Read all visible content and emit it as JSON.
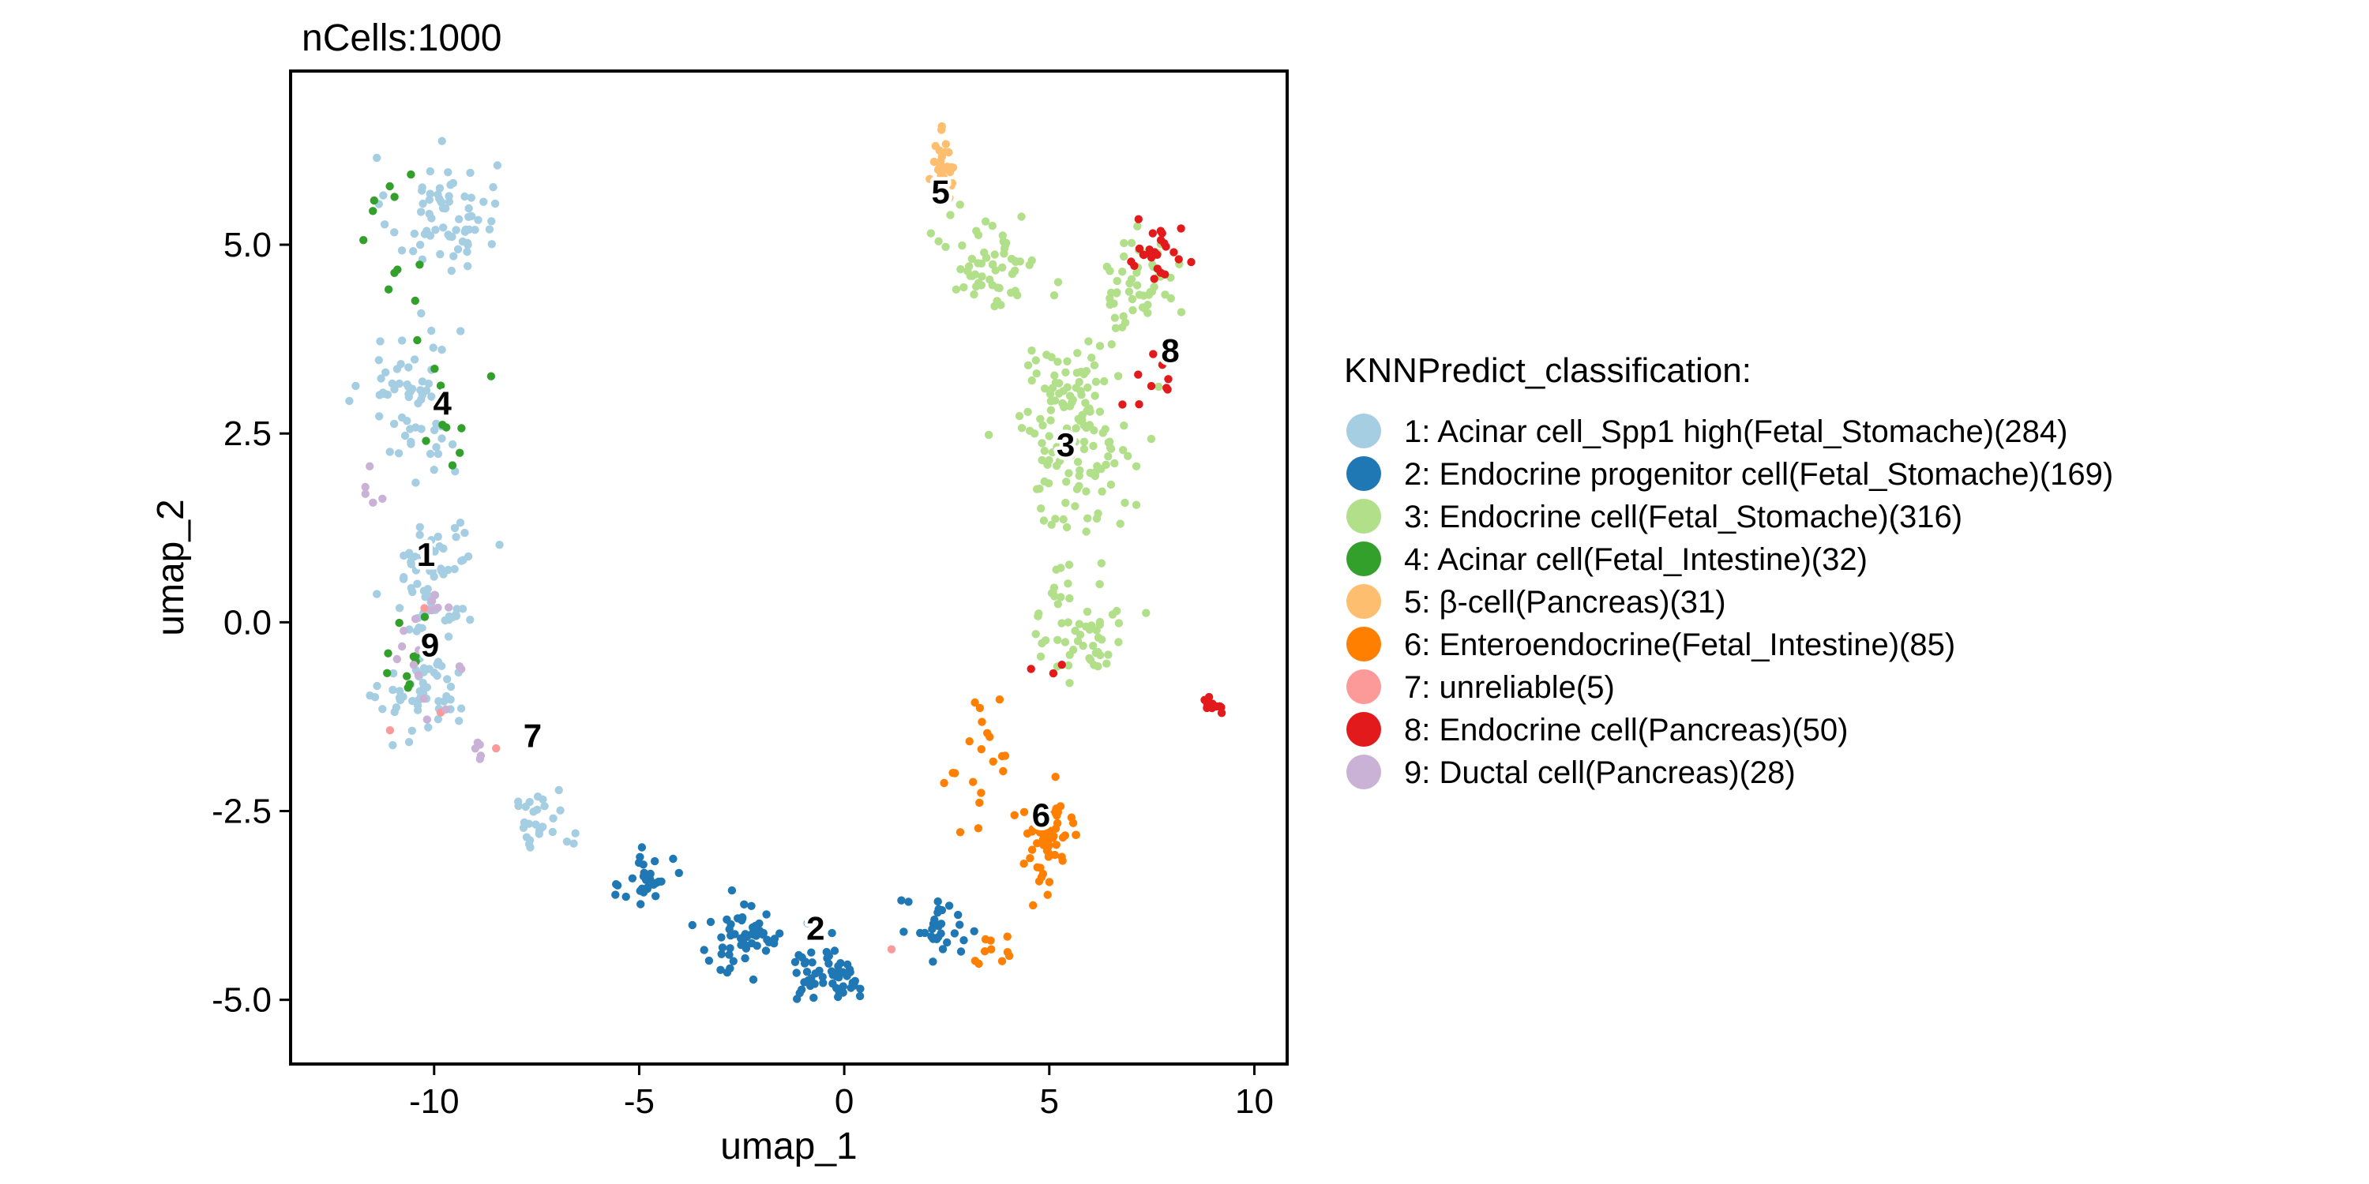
{
  "chart_data": {
    "type": "scatter",
    "title": "nCells:1000",
    "xlabel": "umap_1",
    "ylabel": "umap_2",
    "xlim": [
      -13.5,
      10.8
    ],
    "ylim": [
      -5.85,
      7.3
    ],
    "xticks": [
      -10,
      -5,
      0,
      5,
      10
    ],
    "xtick_labels": [
      "-10",
      "-5",
      "0",
      "5",
      "10"
    ],
    "yticks": [
      -5.0,
      -2.5,
      0.0,
      2.5,
      5.0
    ],
    "ytick_labels": [
      "-5.0",
      "-2.5",
      "0.0",
      "2.5",
      "5.0"
    ],
    "grid": false,
    "legend_position": "right",
    "legend_title": "KNNPredict_classification:",
    "colors": [
      "#a6cee3",
      "#1f78b4",
      "#b2df8a",
      "#33a02c",
      "#fdbf6f",
      "#ff7f00",
      "#fb9a99",
      "#e31a1c",
      "#cab2d6"
    ],
    "categories": [
      "1: Acinar cell_Spp1 high(Fetal_Stomache)(284)",
      "2: Endocrine progenitor cell(Fetal_Stomache)(169)",
      "3: Endocrine cell(Fetal_Stomache)(316)",
      "4: Acinar cell(Fetal_Intestine)(32)",
      "5: β-cell(Pancreas)(31)",
      "6: Enteroendocrine(Fetal_Intestine)(85)",
      "7: unreliable(5)",
      "8: Endocrine cell(Pancreas)(50)",
      "9: Ductal cell(Pancreas)(28)"
    ],
    "cluster_labels": [
      {
        "text": "1",
        "x": -10.2,
        "y": 0.9
      },
      {
        "text": "2",
        "x": -0.7,
        "y": -4.05
      },
      {
        "text": "3",
        "x": 5.4,
        "y": 2.35
      },
      {
        "text": "4",
        "x": -9.8,
        "y": 2.9
      },
      {
        "text": "5",
        "x": 2.35,
        "y": 5.7
      },
      {
        "text": "6",
        "x": 4.8,
        "y": -2.55
      },
      {
        "text": "7",
        "x": -7.6,
        "y": -1.5
      },
      {
        "text": "8",
        "x": 7.95,
        "y": 3.6
      },
      {
        "text": "9",
        "x": -10.1,
        "y": -0.3
      }
    ],
    "series": [
      {
        "name": "1: Acinar cell_Spp1 high(Fetal_Stomache)(284)",
        "count": 284,
        "regions": [
          {
            "x": -9.8,
            "y": 5.4,
            "sx": 1.2,
            "sy": 0.7,
            "n": 70
          },
          {
            "x": -10.6,
            "y": 3.0,
            "sx": 1.1,
            "sy": 1.0,
            "n": 60
          },
          {
            "x": -10.0,
            "y": 0.6,
            "sx": 0.9,
            "sy": 1.0,
            "n": 75
          },
          {
            "x": -10.2,
            "y": -1.0,
            "sx": 1.0,
            "sy": 0.5,
            "n": 50
          },
          {
            "x": -7.4,
            "y": -2.6,
            "sx": 0.7,
            "sy": 0.35,
            "n": 29
          }
        ]
      },
      {
        "name": "2: Endocrine progenitor cell(Fetal_Stomache)(169)",
        "count": 169,
        "regions": [
          {
            "x": -4.8,
            "y": -3.4,
            "sx": 0.55,
            "sy": 0.45,
            "n": 30
          },
          {
            "x": -2.5,
            "y": -4.2,
            "sx": 0.9,
            "sy": 0.45,
            "n": 55
          },
          {
            "x": -0.3,
            "y": -4.6,
            "sx": 1.0,
            "sy": 0.4,
            "n": 55
          },
          {
            "x": 2.3,
            "y": -4.1,
            "sx": 0.9,
            "sy": 0.4,
            "n": 29
          }
        ]
      },
      {
        "name": "3: Endocrine cell(Fetal_Stomache)(316)",
        "count": 316,
        "regions": [
          {
            "x": 3.6,
            "y": 4.8,
            "sx": 1.0,
            "sy": 0.6,
            "n": 60
          },
          {
            "x": 5.6,
            "y": 2.5,
            "sx": 1.3,
            "sy": 1.1,
            "n": 150
          },
          {
            "x": 7.2,
            "y": 4.5,
            "sx": 0.8,
            "sy": 0.6,
            "n": 50
          },
          {
            "x": 5.8,
            "y": 0.0,
            "sx": 1.0,
            "sy": 0.8,
            "n": 56
          }
        ]
      },
      {
        "name": "4: Acinar cell(Fetal_Intestine)(32)",
        "count": 32,
        "regions": [
          {
            "x": -11.0,
            "y": 4.8,
            "sx": 0.9,
            "sy": 1.0,
            "n": 12
          },
          {
            "x": -9.6,
            "y": 2.8,
            "sx": 0.8,
            "sy": 0.8,
            "n": 10
          },
          {
            "x": -10.6,
            "y": -0.3,
            "sx": 0.7,
            "sy": 0.8,
            "n": 10
          }
        ]
      },
      {
        "name": "5: β-cell(Pancreas)(31)",
        "count": 31,
        "regions": [
          {
            "x": 2.4,
            "y": 6.0,
            "sx": 0.25,
            "sy": 0.4,
            "n": 31
          }
        ]
      },
      {
        "name": "6: Enteroendocrine(Fetal_Intestine)(85)",
        "count": 85,
        "regions": [
          {
            "x": 5.0,
            "y": -2.9,
            "sx": 0.75,
            "sy": 0.55,
            "n": 55
          },
          {
            "x": 3.3,
            "y": -1.8,
            "sx": 0.8,
            "sy": 0.9,
            "n": 20
          },
          {
            "x": 3.8,
            "y": -4.3,
            "sx": 0.5,
            "sy": 0.25,
            "n": 10
          }
        ]
      },
      {
        "name": "7: unreliable(5)",
        "count": 5,
        "regions": [
          {
            "x": -10.8,
            "y": -1.5,
            "sx": 0.3,
            "sy": 0.1,
            "n": 1
          },
          {
            "x": -9.8,
            "y": -1.2,
            "sx": 0.2,
            "sy": 0.1,
            "n": 1
          },
          {
            "x": 1.2,
            "y": -4.3,
            "sx": 0.1,
            "sy": 0.1,
            "n": 1
          },
          {
            "x": -8.5,
            "y": -1.7,
            "sx": 0.2,
            "sy": 0.1,
            "n": 1
          },
          {
            "x": -10.3,
            "y": 0.2,
            "sx": 0.2,
            "sy": 0.1,
            "n": 1
          }
        ]
      },
      {
        "name": "8: Endocrine cell(Pancreas)(50)",
        "count": 50,
        "regions": [
          {
            "x": 7.6,
            "y": 4.8,
            "sx": 0.6,
            "sy": 0.4,
            "n": 25
          },
          {
            "x": 7.4,
            "y": 3.2,
            "sx": 0.6,
            "sy": 0.5,
            "n": 10
          },
          {
            "x": 9.0,
            "y": -1.1,
            "sx": 0.45,
            "sy": 0.12,
            "n": 12
          },
          {
            "x": 5.0,
            "y": -0.5,
            "sx": 0.4,
            "sy": 0.3,
            "n": 3
          }
        ]
      },
      {
        "name": "9: Ductal cell(Pancreas)(28)",
        "count": 28,
        "regions": [
          {
            "x": -10.3,
            "y": -0.4,
            "sx": 0.6,
            "sy": 0.6,
            "n": 18
          },
          {
            "x": -11.6,
            "y": 1.8,
            "sx": 0.4,
            "sy": 0.4,
            "n": 5
          },
          {
            "x": -8.8,
            "y": -1.7,
            "sx": 0.4,
            "sy": 0.2,
            "n": 5
          }
        ]
      }
    ]
  }
}
